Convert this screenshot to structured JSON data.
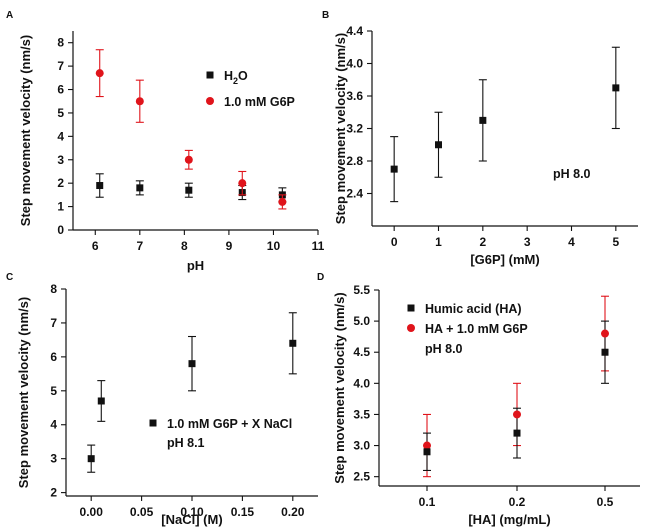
{
  "colors": {
    "black": "#111111",
    "red": "#e0141b"
  },
  "chart_data": [
    {
      "panel": "A",
      "type": "scatter",
      "xlabel": "pH",
      "ylabel": "Step movement velocity (nm/s)",
      "xlim": [
        5.5,
        11
      ],
      "ylim": [
        0,
        8.5
      ],
      "xticks": [
        6,
        7,
        8,
        9,
        10,
        11
      ],
      "yticks": [
        0,
        1,
        2,
        3,
        4,
        5,
        6,
        7,
        8
      ],
      "legend_position": "right",
      "series": [
        {
          "name": "H2O",
          "marker": "square",
          "color": "black",
          "points": [
            {
              "x": 6.1,
              "y": 1.9,
              "err": 0.5
            },
            {
              "x": 7.0,
              "y": 1.8,
              "err": 0.3
            },
            {
              "x": 8.1,
              "y": 1.7,
              "err": 0.3
            },
            {
              "x": 9.3,
              "y": 1.6,
              "err": 0.3
            },
            {
              "x": 10.2,
              "y": 1.5,
              "err": 0.3
            }
          ]
        },
        {
          "name": "1.0 mM G6P",
          "marker": "circle",
          "color": "red",
          "points": [
            {
              "x": 6.1,
              "y": 6.7,
              "err": 1.0
            },
            {
              "x": 7.0,
              "y": 5.5,
              "err": 0.9
            },
            {
              "x": 8.1,
              "y": 3.0,
              "err": 0.4
            },
            {
              "x": 9.3,
              "y": 2.0,
              "err": 0.5
            },
            {
              "x": 10.2,
              "y": 1.2,
              "err": 0.3
            }
          ]
        }
      ]
    },
    {
      "panel": "B",
      "type": "scatter",
      "xlabel": "[G6P] (mM)",
      "ylabel": "Step movement velocity (nm/s)",
      "xlim": [
        -0.5,
        5.5
      ],
      "ylim": [
        2.0,
        4.4
      ],
      "xticks": [
        0,
        1,
        2,
        3,
        4,
        5
      ],
      "yticks": [
        2.4,
        2.8,
        3.2,
        3.6,
        4.0,
        4.4
      ],
      "annotation": "pH 8.0",
      "series": [
        {
          "marker": "square",
          "color": "black",
          "points": [
            {
              "x": 0,
              "y": 2.7,
              "err": 0.4
            },
            {
              "x": 1,
              "y": 3.0,
              "err": 0.4
            },
            {
              "x": 2,
              "y": 3.3,
              "err": 0.5
            },
            {
              "x": 5,
              "y": 3.7,
              "err": 0.5
            }
          ]
        }
      ]
    },
    {
      "panel": "C",
      "type": "scatter",
      "xlabel": "[NaCl] (M)",
      "ylabel": "Step movement velocity (nm/s)",
      "xlim": [
        -0.025,
        0.225
      ],
      "ylim": [
        1.9,
        8
      ],
      "xticks": [
        0.0,
        0.05,
        0.1,
        0.15,
        0.2
      ],
      "xtick_labels": [
        "0.00",
        "0.05",
        "0.10",
        "0.15",
        "0.20"
      ],
      "yticks": [
        2,
        3,
        4,
        5,
        6,
        7,
        8
      ],
      "legend_position": "right",
      "legend_text": "1.0 mM G6P + X NaCl",
      "legend_subtext": "pH 8.1",
      "series": [
        {
          "name": "1.0 mM G6P + X NaCl",
          "marker": "square",
          "color": "black",
          "points": [
            {
              "x": 0.0,
              "y": 3.0,
              "err": 0.4
            },
            {
              "x": 0.01,
              "y": 4.7,
              "err": 0.6
            },
            {
              "x": 0.1,
              "y": 5.8,
              "err": 0.8
            },
            {
              "x": 0.2,
              "y": 6.4,
              "err": 0.9
            }
          ]
        }
      ]
    },
    {
      "panel": "D",
      "type": "scatter",
      "xlabel": "[HA] (mg/mL)",
      "ylabel": "Step movement velocity (nm/s)",
      "categories": [
        "0.1",
        "0.2",
        "0.5"
      ],
      "ylim": [
        2.35,
        5.5
      ],
      "yticks": [
        2.5,
        3.0,
        3.5,
        4.0,
        4.5,
        5.0,
        5.5
      ],
      "yticks_labels": [
        "2.5",
        "3.0",
        "3.5",
        "4.0",
        "4.5",
        "5.0",
        "5.5"
      ],
      "legend_position": "top-left",
      "legend_subtext": "pH 8.0",
      "series": [
        {
          "name": "Humic acid (HA)",
          "marker": "square",
          "color": "black",
          "values": [
            2.9,
            3.2,
            4.5
          ],
          "errors": [
            0.3,
            0.4,
            0.5
          ]
        },
        {
          "name": "HA + 1.0 mM G6P",
          "marker": "circle",
          "color": "red",
          "values": [
            3.0,
            3.5,
            4.8
          ],
          "errors": [
            0.5,
            0.5,
            0.6
          ]
        }
      ]
    }
  ]
}
